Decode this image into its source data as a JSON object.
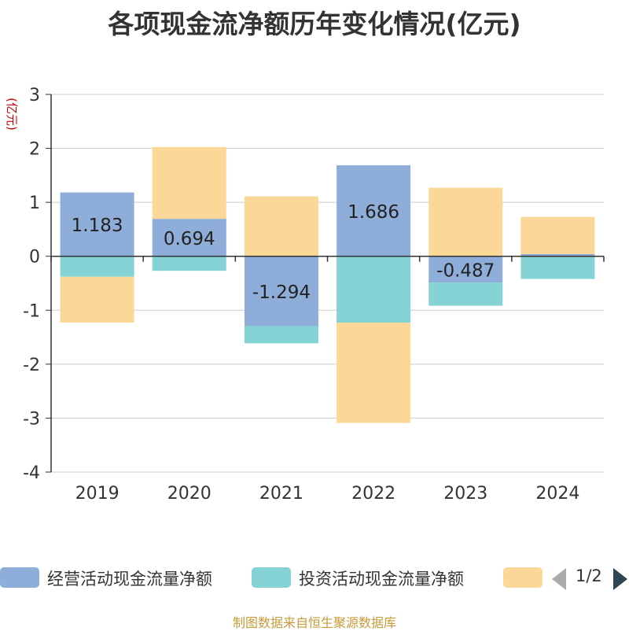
{
  "title": "各项现金流净额历年变化情况(亿元)",
  "source": "制图数据来自恒生聚源数据库",
  "chart_data": {
    "type": "bar",
    "stacked": true,
    "ylabel": "(亿元)",
    "ylim": [
      -4,
      3
    ],
    "yticks": [
      3,
      2,
      1,
      0,
      -1,
      -2,
      -3,
      -4
    ],
    "grid": true,
    "categories": [
      "2019",
      "2020",
      "2021",
      "2022",
      "2023",
      "2024"
    ],
    "series": [
      {
        "name": "经营活动现金流量净额",
        "color": "#8eadd9",
        "values": [
          1.183,
          0.694,
          -1.294,
          1.686,
          -0.487,
          0.04
        ],
        "labels": [
          "1.183",
          "0.694",
          "-1.294",
          "1.686",
          "-0.487",
          ""
        ]
      },
      {
        "name": "投资活动现金流量净额",
        "color": "#86d3d6",
        "values": [
          -0.38,
          -0.27,
          -0.32,
          -1.23,
          -0.43,
          -0.42
        ]
      },
      {
        "name": "",
        "color": "#fcd898",
        "values": [
          -0.85,
          1.33,
          1.11,
          -1.86,
          1.27,
          0.69
        ]
      }
    ]
  },
  "legend": {
    "page_indicator": "1/2"
  }
}
